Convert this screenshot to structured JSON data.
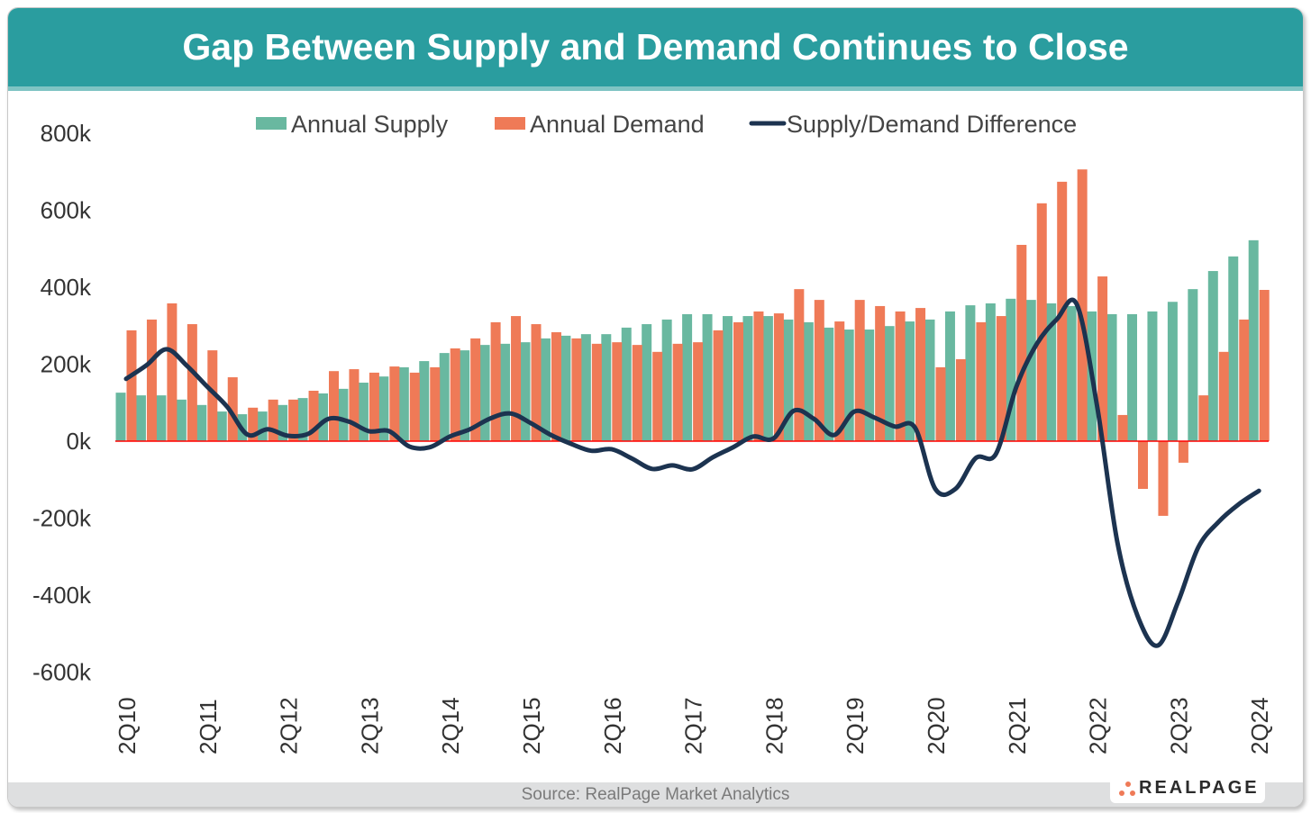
{
  "title": "Gap Between Supply and Demand Continues to Close",
  "source": "Source: RealPage Market Analytics",
  "logo_text": "REALPAGE",
  "colors": {
    "header": "#2a9d9f",
    "supply": "#69b8a0",
    "demand": "#ef7a57",
    "difference": "#1c3350",
    "zero_line": "#ff0000"
  },
  "chart_data": {
    "type": "bar",
    "title": "Gap Between Supply and Demand Continues to Close",
    "legend_position": "top",
    "grid": false,
    "ylim": [
      -600000,
      800000
    ],
    "y_ticks": [
      800000,
      600000,
      400000,
      200000,
      0,
      -200000,
      -400000,
      -600000
    ],
    "y_tick_labels": [
      "800k",
      "600k",
      "400k",
      "200k",
      "0k",
      "-200k",
      "-400k",
      "-600k"
    ],
    "x_tick_labels": [
      "2Q10",
      "2Q11",
      "2Q12",
      "2Q13",
      "2Q14",
      "2Q15",
      "2Q16",
      "2Q17",
      "2Q18",
      "2Q19",
      "2Q20",
      "2Q21",
      "2Q22",
      "2Q23",
      "2Q24"
    ],
    "categories": [
      "2Q10",
      "3Q10",
      "4Q10",
      "1Q11",
      "2Q11",
      "3Q11",
      "4Q11",
      "1Q12",
      "2Q12",
      "3Q12",
      "4Q12",
      "1Q13",
      "2Q13",
      "3Q13",
      "4Q13",
      "1Q14",
      "2Q14",
      "3Q14",
      "4Q14",
      "1Q15",
      "2Q15",
      "3Q15",
      "4Q15",
      "1Q16",
      "2Q16",
      "3Q16",
      "4Q16",
      "1Q17",
      "2Q17",
      "3Q17",
      "4Q17",
      "1Q18",
      "2Q18",
      "3Q18",
      "4Q18",
      "1Q19",
      "2Q19",
      "3Q19",
      "4Q19",
      "1Q20",
      "2Q20",
      "3Q20",
      "4Q20",
      "1Q21",
      "2Q21",
      "3Q21",
      "4Q21",
      "1Q22",
      "2Q22",
      "3Q22",
      "4Q22",
      "1Q23",
      "2Q23",
      "3Q23",
      "4Q23",
      "1Q24",
      "2Q24"
    ],
    "series": [
      {
        "name": "Annual Supply",
        "type": "bar",
        "values": [
          126000,
          119000,
          119000,
          108000,
          94000,
          77000,
          70000,
          77000,
          94000,
          112000,
          124000,
          136000,
          152000,
          168000,
          192000,
          208000,
          229000,
          236000,
          250000,
          253000,
          257000,
          267000,
          274000,
          278000,
          278000,
          295000,
          304000,
          316000,
          330000,
          330000,
          325000,
          325000,
          325000,
          316000,
          309000,
          295000,
          290000,
          290000,
          299000,
          311000,
          316000,
          337000,
          353000,
          358000,
          370000,
          367000,
          358000,
          351000,
          337000,
          330000,
          330000,
          337000,
          362000,
          395000,
          442000,
          480000,
          522000
        ]
      },
      {
        "name": "Annual Demand",
        "type": "bar",
        "values": [
          288000,
          316000,
          358000,
          304000,
          236000,
          166000,
          87000,
          108000,
          108000,
          131000,
          182000,
          187000,
          178000,
          194000,
          178000,
          192000,
          241000,
          267000,
          309000,
          325000,
          304000,
          283000,
          267000,
          253000,
          257000,
          250000,
          232000,
          253000,
          257000,
          288000,
          309000,
          337000,
          332000,
          395000,
          367000,
          311000,
          367000,
          351000,
          337000,
          346000,
          192000,
          213000,
          309000,
          325000,
          510000,
          618000,
          674000,
          706000,
          428000,
          68000,
          -124000,
          -194000,
          -56000,
          119000,
          232000,
          316000,
          393000
        ]
      },
      {
        "name": "Supply/Demand Difference",
        "type": "line",
        "values": [
          162000,
          197000,
          239000,
          196000,
          142000,
          89000,
          17000,
          31000,
          14000,
          19000,
          58000,
          51000,
          26000,
          26000,
          -14000,
          -16000,
          12000,
          31000,
          59000,
          72000,
          47000,
          16000,
          -7000,
          -25000,
          -21000,
          -45000,
          -72000,
          -63000,
          -73000,
          -42000,
          -16000,
          12000,
          7000,
          79000,
          58000,
          16000,
          77000,
          61000,
          38000,
          35000,
          -124000,
          -124000,
          -44000,
          -33000,
          140000,
          251000,
          316000,
          355000,
          91000,
          -262000,
          -454000,
          -531000,
          -418000,
          -276000,
          -210000,
          -164000,
          -129000
        ]
      }
    ]
  }
}
